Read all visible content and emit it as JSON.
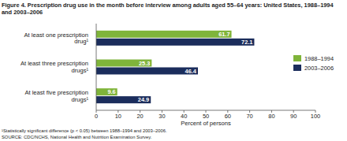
{
  "chart_data": {
    "type": "bar",
    "orientation": "horizontal",
    "title": "Figure 4. Prescription drug use in the month before interview among adults aged 55–64 years: United States, 1988–1994 and 2003–2006",
    "categories": [
      "At least one prescription drug¹",
      "At least three prescription drugs¹",
      "At least five prescription drugs¹"
    ],
    "series": [
      {
        "name": "1988–1994",
        "color": "#7fb43a",
        "values": [
          61.7,
          25.3,
          9.6
        ]
      },
      {
        "name": "2003–2006",
        "color": "#1b2d5c",
        "values": [
          72.1,
          46.4,
          24.9
        ]
      }
    ],
    "x_label": "Percent of persons",
    "xlim": [
      0,
      100
    ],
    "xticks": [
      0,
      10,
      20,
      30,
      40,
      50,
      60,
      70,
      80,
      90,
      100
    ],
    "data_labels": true,
    "legend": "right",
    "grid": false,
    "notes": [
      "¹Statistically significant difference (p < 0.05) between 1988–1994 and 2003–2006.",
      "SOURCE: CDC/NCHS, National Health and Nutrition Examination Survey."
    ]
  }
}
